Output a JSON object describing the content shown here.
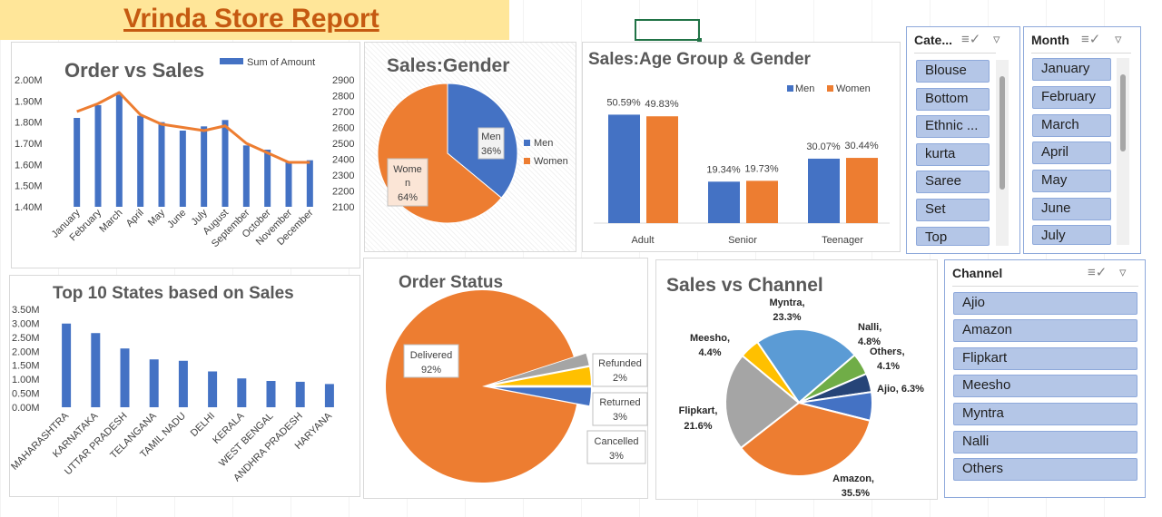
{
  "title": "Vrinda Store Report",
  "colors": {
    "blue": "#4472c4",
    "orange": "#ed7d31",
    "gray": "#a5a5a5",
    "yellow": "#ffc000",
    "lightblue": "#5b9bd5",
    "green": "#70ad47",
    "navy": "#264478"
  },
  "order_vs_sales": {
    "title": "Order vs Sales",
    "legend": "Sum of Amount",
    "y_left_ticks": [
      "2.00M",
      "1.90M",
      "1.80M",
      "1.70M",
      "1.60M",
      "1.50M",
      "1.40M"
    ],
    "y_right_ticks": [
      "2900",
      "2800",
      "2700",
      "2600",
      "2500",
      "2400",
      "2300",
      "2200",
      "2100"
    ],
    "months": [
      "January",
      "February",
      "March",
      "April",
      "May",
      "June",
      "July",
      "August",
      "September",
      "October",
      "November",
      "December"
    ]
  },
  "sales_gender": {
    "title": "Sales:Gender",
    "men_label": "Men",
    "men_pct": "36%",
    "women_label_1": "Wome",
    "women_label_2": "n",
    "women_pct": "64%",
    "legend_men": "Men",
    "legend_women": "Women"
  },
  "age_gender": {
    "title": "Sales:Age Group & Gender",
    "legend_men": "Men",
    "legend_women": "Women",
    "groups": [
      "Adult",
      "Senior",
      "Teenager"
    ],
    "men_labels": [
      "50.59%",
      "19.34%",
      "30.07%"
    ],
    "women_labels": [
      "49.83%",
      "19.73%",
      "30.44%"
    ]
  },
  "top_states": {
    "title": "Top 10 States based on Sales",
    "y_ticks": [
      "3.50M",
      "3.00M",
      "2.50M",
      "2.00M",
      "1.50M",
      "1.00M",
      "0.50M",
      "0.00M"
    ],
    "states": [
      "MAHARASHTRA",
      "KARNATAKA",
      "UTTAR PRADESH",
      "TELANGANA",
      "TAMIL NADU",
      "DELHI",
      "KERALA",
      "WEST BENGAL",
      "ANDHRA PRADESH",
      "HARYANA"
    ]
  },
  "order_status": {
    "title": "Order Status",
    "delivered": "Delivered",
    "delivered_pct": "92%",
    "refunded": "Refunded",
    "refunded_pct": "2%",
    "returned": "Returned",
    "returned_pct": "3%",
    "cancelled": "Cancelled",
    "cancelled_pct": "3%"
  },
  "sales_channel": {
    "title": "Sales vs Channel",
    "labels": {
      "myntra": "Myntra,",
      "myntra_pct": "23.3%",
      "nalli": "Nalli,",
      "nalli_pct": "4.8%",
      "others": "Others,",
      "others_pct": "4.1%",
      "ajio": "Ajio, 6.3%",
      "amazon": "Amazon,",
      "amazon_pct": "35.5%",
      "flipkart": "Flipkart,",
      "flipkart_pct": "21.6%",
      "meesho": "Meesho,",
      "meesho_pct": "4.4%"
    }
  },
  "slicer_category": {
    "header": "Cate...",
    "items": [
      "Blouse",
      "Bottom",
      "Ethnic ...",
      "kurta",
      "Saree",
      "Set",
      "Top"
    ]
  },
  "slicer_month": {
    "header": "Month",
    "items": [
      "January",
      "February",
      "March",
      "April",
      "May",
      "June",
      "July"
    ]
  },
  "slicer_channel": {
    "header": "Channel",
    "items": [
      "Ajio",
      "Amazon",
      "Flipkart",
      "Meesho",
      "Myntra",
      "Nalli",
      "Others"
    ]
  },
  "chart_data": [
    {
      "type": "bar",
      "title": "Order vs Sales",
      "categories": [
        "January",
        "February",
        "March",
        "April",
        "May",
        "June",
        "July",
        "August",
        "September",
        "October",
        "November",
        "December"
      ],
      "series": [
        {
          "name": "Sum of Amount",
          "type": "bar",
          "axis": "left",
          "values": [
            1.82,
            1.88,
            1.93,
            1.83,
            1.8,
            1.76,
            1.78,
            1.81,
            1.69,
            1.67,
            1.61,
            1.62
          ]
        },
        {
          "type": "line",
          "axis": "right",
          "values": [
            2700,
            2750,
            2820,
            2680,
            2620,
            2600,
            2580,
            2610,
            2500,
            2440,
            2380,
            2380
          ]
        }
      ],
      "ylim_left": [
        1.4,
        2.0
      ],
      "ylim_right": [
        2100,
        2900
      ]
    },
    {
      "type": "pie",
      "title": "Sales:Gender",
      "categories": [
        "Men",
        "Women"
      ],
      "values": [
        36,
        64
      ]
    },
    {
      "type": "bar",
      "title": "Sales:Age Group & Gender",
      "categories": [
        "Adult",
        "Senior",
        "Teenager"
      ],
      "series": [
        {
          "name": "Men",
          "values": [
            50.59,
            19.34,
            30.07
          ]
        },
        {
          "name": "Women",
          "values": [
            49.83,
            19.73,
            30.44
          ]
        }
      ]
    },
    {
      "type": "bar",
      "title": "Top 10 States based on Sales",
      "categories": [
        "MAHARASHTRA",
        "KARNATAKA",
        "UTTAR PRADESH",
        "TELANGANA",
        "TAMIL NADU",
        "DELHI",
        "KERALA",
        "WEST BENGAL",
        "ANDHRA PRADESH",
        "HARYANA"
      ],
      "values": [
        2.99,
        2.65,
        2.1,
        1.71,
        1.66,
        1.28,
        1.03,
        0.94,
        0.91,
        0.83
      ],
      "ylim": [
        0,
        3.5
      ]
    },
    {
      "type": "pie",
      "title": "Order Status",
      "categories": [
        "Delivered",
        "Refunded",
        "Returned",
        "Cancelled"
      ],
      "values": [
        92,
        2,
        3,
        3
      ]
    },
    {
      "type": "pie",
      "title": "Sales vs Channel",
      "categories": [
        "Myntra",
        "Nalli",
        "Others",
        "Ajio",
        "Amazon",
        "Flipkart",
        "Meesho"
      ],
      "values": [
        23.3,
        4.8,
        4.1,
        6.3,
        35.5,
        21.6,
        4.4
      ]
    }
  ]
}
